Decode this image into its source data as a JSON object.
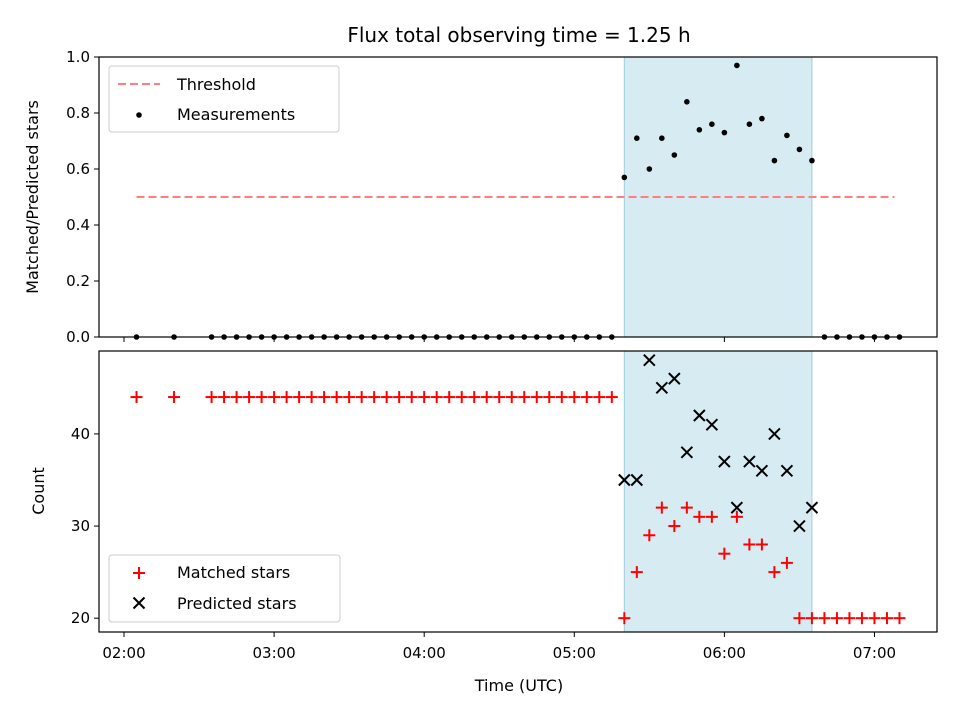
{
  "title": "Flux total observing time = 1.25 h",
  "colors": {
    "threshold": "#ff7f7f",
    "measurement": "#000000",
    "matched": "#ff0000",
    "predicted": "#000000",
    "shade": "#add8e6"
  },
  "chart_data": [
    {
      "type": "scatter",
      "panel": "top",
      "ylabel": "Matched/Predicted stars",
      "ylim": [
        0,
        1.0
      ],
      "yticks": [
        "0.0",
        "0.2",
        "0.4",
        "0.6",
        "0.8",
        "1.0"
      ],
      "xlim": [
        "01:50",
        "07:25"
      ],
      "grid": false,
      "legend": "top-left",
      "shaded_interval": [
        "05:20",
        "06:35"
      ],
      "threshold": {
        "name": "Threshold",
        "y": 0.5,
        "x": [
          "02:05",
          "07:08"
        ]
      },
      "series": [
        {
          "name": "Measurements",
          "x": [
            "02:05",
            "02:20",
            "02:35",
            "02:40",
            "02:45",
            "02:50",
            "02:55",
            "03:00",
            "03:05",
            "03:10",
            "03:15",
            "03:20",
            "03:25",
            "03:30",
            "03:35",
            "03:40",
            "03:45",
            "03:50",
            "03:55",
            "04:00",
            "04:05",
            "04:10",
            "04:15",
            "04:20",
            "04:25",
            "04:30",
            "04:35",
            "04:40",
            "04:45",
            "04:50",
            "04:55",
            "05:00",
            "05:05",
            "05:10",
            "05:15",
            "05:20",
            "05:25",
            "05:30",
            "05:35",
            "05:40",
            "05:45",
            "05:50",
            "05:55",
            "06:00",
            "06:05",
            "06:10",
            "06:15",
            "06:20",
            "06:25",
            "06:30",
            "06:35",
            "06:40",
            "06:45",
            "06:50",
            "06:55",
            "07:00",
            "07:05",
            "07:10"
          ],
          "y": [
            0,
            0,
            0,
            0,
            0,
            0,
            0,
            0,
            0,
            0,
            0,
            0,
            0,
            0,
            0,
            0,
            0,
            0,
            0,
            0,
            0,
            0,
            0,
            0,
            0,
            0,
            0,
            0,
            0,
            0,
            0,
            0,
            0,
            0,
            0,
            0.57,
            0.71,
            0.6,
            0.71,
            0.65,
            0.84,
            0.74,
            0.76,
            0.73,
            0.97,
            0.76,
            0.78,
            0.63,
            0.72,
            0.67,
            0.63,
            0,
            0,
            0,
            0,
            0,
            0,
            0
          ]
        }
      ]
    },
    {
      "type": "scatter",
      "panel": "bottom",
      "xlabel": "Time (UTC)",
      "ylabel": "Count",
      "ylim": [
        18.5,
        49
      ],
      "yticks": [
        "20",
        "30",
        "40"
      ],
      "xlim": [
        "01:50",
        "07:25"
      ],
      "xticks": [
        "02:00",
        "03:00",
        "04:00",
        "05:00",
        "06:00",
        "07:00"
      ],
      "grid": false,
      "legend": "bottom-left",
      "shaded_interval": [
        "05:20",
        "06:35"
      ],
      "series": [
        {
          "name": "Matched stars",
          "marker": "+",
          "x": [
            "02:05",
            "02:20",
            "02:35",
            "02:40",
            "02:45",
            "02:50",
            "02:55",
            "03:00",
            "03:05",
            "03:10",
            "03:15",
            "03:20",
            "03:25",
            "03:30",
            "03:35",
            "03:40",
            "03:45",
            "03:50",
            "03:55",
            "04:00",
            "04:05",
            "04:10",
            "04:15",
            "04:20",
            "04:25",
            "04:30",
            "04:35",
            "04:40",
            "04:45",
            "04:50",
            "04:55",
            "05:00",
            "05:05",
            "05:10",
            "05:15",
            "05:20",
            "05:25",
            "05:30",
            "05:35",
            "05:40",
            "05:45",
            "05:50",
            "05:55",
            "06:00",
            "06:05",
            "06:10",
            "06:15",
            "06:20",
            "06:25",
            "06:30",
            "06:35",
            "06:40",
            "06:45",
            "06:50",
            "06:55",
            "07:00",
            "07:05",
            "07:10"
          ],
          "y": [
            44,
            44,
            44,
            44,
            44,
            44,
            44,
            44,
            44,
            44,
            44,
            44,
            44,
            44,
            44,
            44,
            44,
            44,
            44,
            44,
            44,
            44,
            44,
            44,
            44,
            44,
            44,
            44,
            44,
            44,
            44,
            44,
            44,
            44,
            44,
            20,
            25,
            29,
            32,
            30,
            32,
            31,
            31,
            27,
            31,
            28,
            28,
            25,
            26,
            20,
            20,
            20,
            20,
            20,
            20,
            20,
            20,
            20
          ]
        },
        {
          "name": "Predicted stars",
          "marker": "x",
          "x": [
            "05:20",
            "05:25",
            "05:30",
            "05:35",
            "05:40",
            "05:45",
            "05:50",
            "05:55",
            "06:00",
            "06:05",
            "06:10",
            "06:15",
            "06:20",
            "06:25",
            "06:30",
            "06:35"
          ],
          "y": [
            35,
            35,
            48,
            45,
            46,
            38,
            42,
            41,
            37,
            32,
            37,
            36,
            40,
            36,
            30,
            32
          ]
        }
      ]
    }
  ]
}
